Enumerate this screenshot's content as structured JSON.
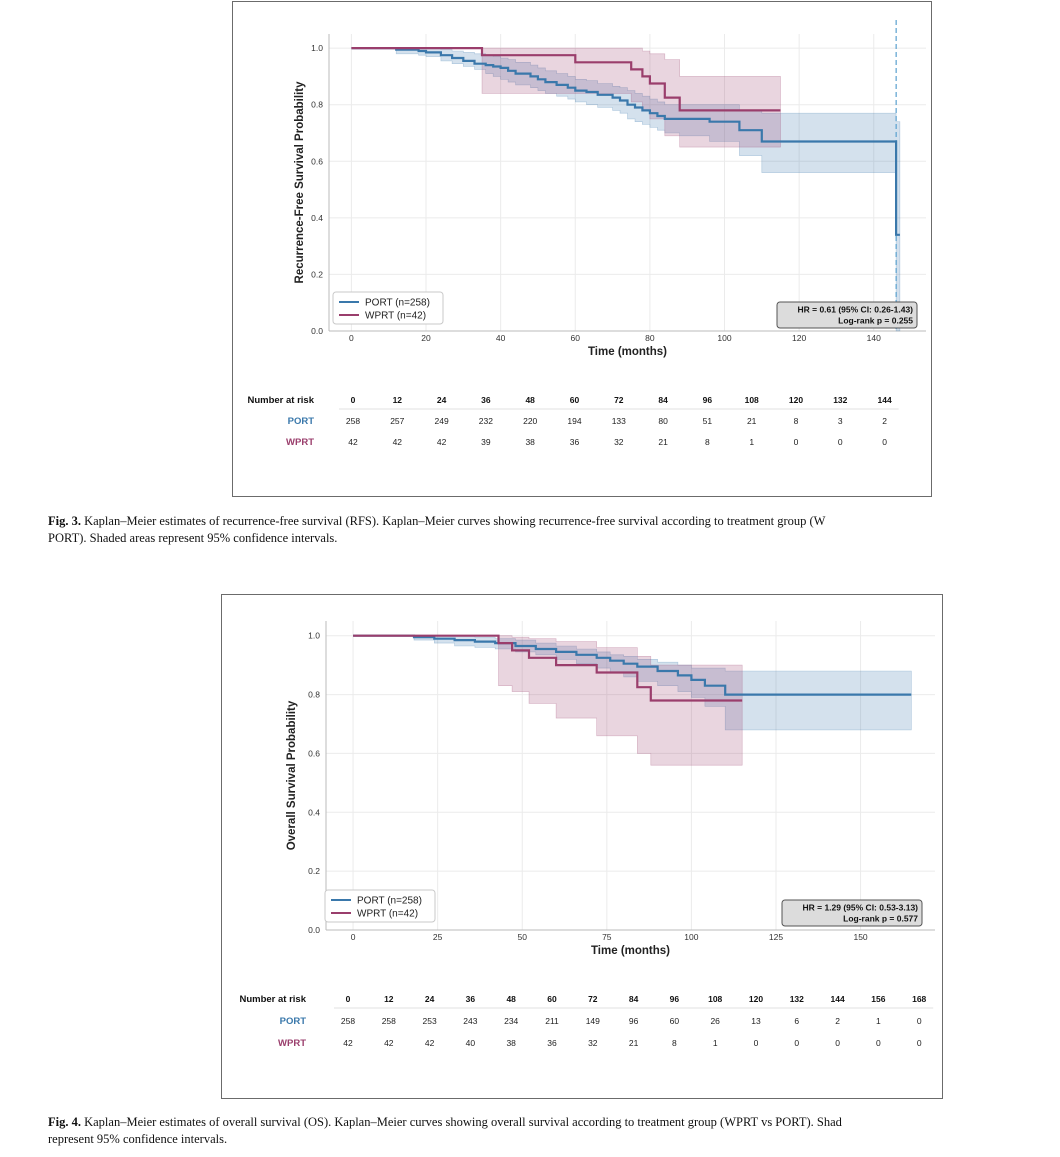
{
  "figures": [
    {
      "id": "fig3",
      "caption": {
        "label": "Fig. 3.",
        "line1": "Kaplan–Meier estimates of recurrence-free survival (RFS). Kaplan–Meier curves showing recurrence-free survival according to treatment group (W",
        "line2": "PORT). Shaded areas represent 95% confidence intervals."
      }
    },
    {
      "id": "fig4",
      "caption": {
        "label": "Fig. 4.",
        "line1": "Kaplan–Meier estimates of overall survival (OS). Kaplan–Meier curves showing overall survival according to treatment group (WPRT vs PORT). Shad",
        "line2": "represent 95% confidence intervals."
      }
    }
  ],
  "chart_data": [
    {
      "type": "line",
      "subtype": "kaplan-meier",
      "title": "",
      "xlabel": "Time (months)",
      "ylabel": "Recurrence-Free Survival Probability",
      "xlim": [
        -6,
        154
      ],
      "ylim": [
        0,
        1.05
      ],
      "xticks": [
        0,
        20,
        40,
        60,
        80,
        100,
        120,
        140
      ],
      "yticks": [
        0.0,
        0.2,
        0.4,
        0.6,
        0.8,
        1.0
      ],
      "ytick_labels": [
        "0.0",
        "0.2",
        "0.4",
        "0.6",
        "0.8",
        "1.0"
      ],
      "grid": true,
      "legend_position": "bottom-left",
      "reference_line_x": 146,
      "series": [
        {
          "name": "PORT (n=258)",
          "color": "#3a78ab",
          "x": [
            0,
            5,
            12,
            18,
            20,
            24,
            27,
            30,
            33,
            36,
            38,
            40,
            42,
            44,
            48,
            50,
            52,
            55,
            58,
            60,
            63,
            66,
            70,
            72,
            74,
            76,
            78,
            80,
            82,
            84,
            88,
            96,
            104,
            110,
            146,
            146,
            147
          ],
          "y": [
            1.0,
            1.0,
            0.995,
            0.99,
            0.985,
            0.975,
            0.965,
            0.955,
            0.945,
            0.94,
            0.935,
            0.93,
            0.92,
            0.91,
            0.9,
            0.89,
            0.88,
            0.87,
            0.86,
            0.85,
            0.845,
            0.835,
            0.825,
            0.815,
            0.8,
            0.79,
            0.78,
            0.77,
            0.76,
            0.75,
            0.75,
            0.74,
            0.71,
            0.67,
            0.67,
            0.34,
            0.34
          ],
          "ci_upper": [
            1.0,
            1.0,
            1.0,
            1.0,
            1.0,
            0.995,
            0.99,
            0.985,
            0.98,
            0.975,
            0.97,
            0.965,
            0.96,
            0.95,
            0.94,
            0.93,
            0.92,
            0.91,
            0.9,
            0.89,
            0.885,
            0.875,
            0.865,
            0.86,
            0.85,
            0.84,
            0.83,
            0.82,
            0.81,
            0.8,
            0.8,
            0.8,
            0.78,
            0.77,
            0.77,
            0.74,
            0.74
          ],
          "ci_lower": [
            1.0,
            1.0,
            0.98,
            0.975,
            0.97,
            0.955,
            0.945,
            0.935,
            0.925,
            0.91,
            0.9,
            0.89,
            0.88,
            0.87,
            0.86,
            0.85,
            0.84,
            0.83,
            0.82,
            0.81,
            0.8,
            0.79,
            0.78,
            0.77,
            0.75,
            0.74,
            0.73,
            0.72,
            0.71,
            0.7,
            0.69,
            0.67,
            0.62,
            0.56,
            0.55,
            0.0,
            0.0
          ]
        },
        {
          "name": "WPRT (n=42)",
          "color": "#9a3e6c",
          "x": [
            0,
            18,
            35,
            60,
            75,
            78,
            80,
            84,
            88,
            115
          ],
          "y": [
            1.0,
            1.0,
            0.975,
            0.95,
            0.925,
            0.9,
            0.875,
            0.825,
            0.78,
            0.78
          ],
          "ci_upper": [
            1.0,
            1.0,
            1.0,
            1.0,
            1.0,
            0.99,
            0.98,
            0.96,
            0.9,
            0.9
          ],
          "ci_lower": [
            1.0,
            1.0,
            0.84,
            0.84,
            0.81,
            0.78,
            0.75,
            0.69,
            0.65,
            0.65
          ]
        }
      ],
      "annotation": {
        "line1": "HR = 0.61 (95% CI: 0.26-1.43)",
        "line2": "Log-rank p = 0.255"
      },
      "risk_table": {
        "header": "Number at risk",
        "times": [
          0,
          12,
          24,
          36,
          48,
          60,
          72,
          84,
          96,
          108,
          120,
          132,
          144
        ],
        "rows": [
          {
            "label": "PORT",
            "color": "#3a78ab",
            "values": [
              258,
              257,
              249,
              232,
              220,
              194,
              133,
              80,
              51,
              21,
              8,
              3,
              2
            ]
          },
          {
            "label": "WPRT",
            "color": "#9a3e6c",
            "values": [
              42,
              42,
              42,
              39,
              38,
              36,
              32,
              21,
              8,
              1,
              0,
              0,
              0
            ]
          }
        ]
      }
    },
    {
      "type": "line",
      "subtype": "kaplan-meier",
      "title": "",
      "xlabel": "Time (months)",
      "ylabel": "Overall Survival Probability",
      "xlim": [
        -8,
        172
      ],
      "ylim": [
        0,
        1.05
      ],
      "xticks": [
        0,
        25,
        50,
        75,
        100,
        125,
        150
      ],
      "yticks": [
        0.0,
        0.2,
        0.4,
        0.6,
        0.8,
        1.0
      ],
      "ytick_labels": [
        "0.0",
        "0.2",
        "0.4",
        "0.6",
        "0.8",
        "1.0"
      ],
      "grid": true,
      "legend_position": "bottom-left",
      "series": [
        {
          "name": "PORT (n=258)",
          "color": "#3a78ab",
          "x": [
            0,
            12,
            18,
            24,
            30,
            36,
            42,
            48,
            54,
            60,
            66,
            72,
            76,
            80,
            84,
            90,
            96,
            100,
            104,
            110,
            165
          ],
          "y": [
            1.0,
            1.0,
            0.995,
            0.99,
            0.985,
            0.98,
            0.975,
            0.965,
            0.955,
            0.945,
            0.935,
            0.925,
            0.915,
            0.905,
            0.895,
            0.88,
            0.865,
            0.85,
            0.83,
            0.8,
            0.8
          ],
          "ci_upper": [
            1.0,
            1.0,
            1.0,
            1.0,
            1.0,
            0.995,
            0.99,
            0.985,
            0.975,
            0.965,
            0.955,
            0.945,
            0.935,
            0.93,
            0.92,
            0.91,
            0.9,
            0.89,
            0.89,
            0.88,
            0.88
          ],
          "ci_lower": [
            1.0,
            1.0,
            0.985,
            0.975,
            0.965,
            0.96,
            0.955,
            0.945,
            0.935,
            0.92,
            0.905,
            0.89,
            0.875,
            0.86,
            0.845,
            0.83,
            0.81,
            0.79,
            0.76,
            0.68,
            0.68
          ]
        },
        {
          "name": "WPRT (n=42)",
          "color": "#9a3e6c",
          "x": [
            0,
            23,
            43,
            47,
            52,
            60,
            72,
            84,
            88,
            100,
            115
          ],
          "y": [
            1.0,
            1.0,
            0.975,
            0.95,
            0.925,
            0.9,
            0.875,
            0.825,
            0.78,
            0.78,
            0.78
          ],
          "ci_upper": [
            1.0,
            1.0,
            1.0,
            0.995,
            0.99,
            0.98,
            0.96,
            0.93,
            0.9,
            0.9,
            0.9
          ],
          "ci_lower": [
            1.0,
            1.0,
            0.83,
            0.81,
            0.77,
            0.72,
            0.66,
            0.6,
            0.56,
            0.56,
            0.56
          ]
        }
      ],
      "annotation": {
        "line1": "HR = 1.29 (95% CI: 0.53-3.13)",
        "line2": "Log-rank p = 0.577"
      },
      "risk_table": {
        "header": "Number at risk",
        "times": [
          0,
          12,
          24,
          36,
          48,
          60,
          72,
          84,
          96,
          108,
          120,
          132,
          144,
          156,
          168
        ],
        "rows": [
          {
            "label": "PORT",
            "color": "#3a78ab",
            "values": [
              258,
              258,
              253,
              243,
              234,
              211,
              149,
              96,
              60,
              26,
              13,
              6,
              2,
              1,
              0
            ]
          },
          {
            "label": "WPRT",
            "color": "#9a3e6c",
            "values": [
              42,
              42,
              42,
              40,
              38,
              36,
              32,
              21,
              8,
              1,
              0,
              0,
              0,
              0,
              0
            ]
          }
        ]
      }
    }
  ]
}
